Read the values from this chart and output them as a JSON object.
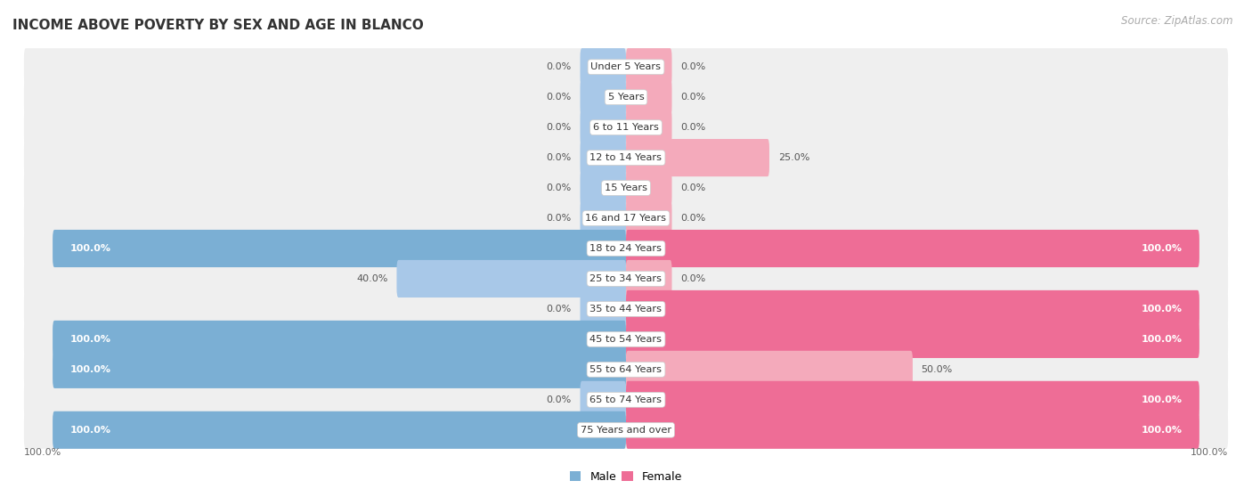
{
  "title": "INCOME ABOVE POVERTY BY SEX AND AGE IN BLANCO",
  "source": "Source: ZipAtlas.com",
  "categories": [
    "Under 5 Years",
    "5 Years",
    "6 to 11 Years",
    "12 to 14 Years",
    "15 Years",
    "16 and 17 Years",
    "18 to 24 Years",
    "25 to 34 Years",
    "35 to 44 Years",
    "45 to 54 Years",
    "55 to 64 Years",
    "65 to 74 Years",
    "75 Years and over"
  ],
  "male": [
    0.0,
    0.0,
    0.0,
    0.0,
    0.0,
    0.0,
    100.0,
    40.0,
    0.0,
    100.0,
    100.0,
    0.0,
    100.0
  ],
  "female": [
    0.0,
    0.0,
    0.0,
    25.0,
    0.0,
    0.0,
    100.0,
    0.0,
    100.0,
    100.0,
    50.0,
    100.0,
    100.0
  ],
  "male_color_partial": "#A8C8E8",
  "male_color_full": "#7BAFD4",
  "female_color_partial": "#F4AABB",
  "female_color_full": "#EE6D96",
  "row_bg_color": "#EFEFEF",
  "row_bg_full_color": "#FFFFFF",
  "label_white": "#FFFFFF",
  "label_dark": "#555555",
  "stub_size": 8.0,
  "xlim_left": -100,
  "xlim_right": 100
}
